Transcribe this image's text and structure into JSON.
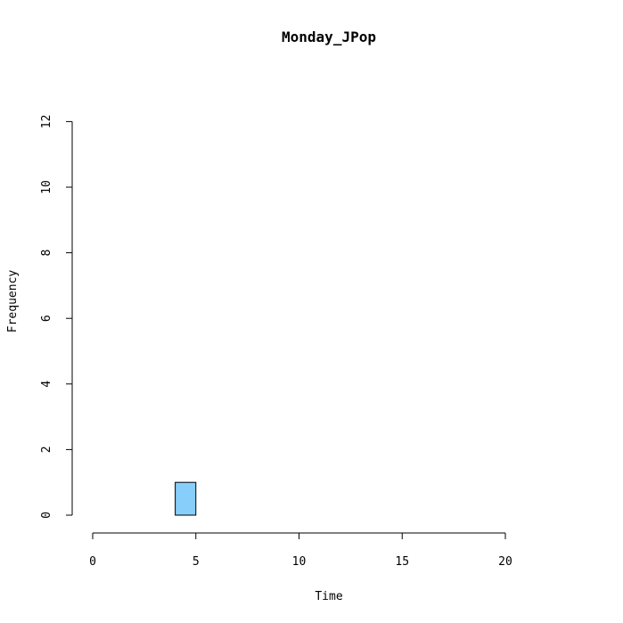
{
  "chart_data": {
    "type": "bar",
    "title": "Monday_JPop",
    "xlabel": "Time",
    "ylabel": "Frequency",
    "xlim": [
      0,
      24
    ],
    "ylim": [
      0,
      12
    ],
    "x_ticks": [
      "0",
      "5",
      "10",
      "15",
      "20"
    ],
    "y_ticks": [
      "0",
      "2",
      "4",
      "6",
      "8",
      "10",
      "12"
    ],
    "bin_width": 1,
    "bins": [
      {
        "start": 0,
        "end": 1,
        "count": 0
      },
      {
        "start": 1,
        "end": 2,
        "count": 0
      },
      {
        "start": 2,
        "end": 3,
        "count": 0
      },
      {
        "start": 3,
        "end": 4,
        "count": 0
      },
      {
        "start": 4,
        "end": 5,
        "count": 1
      },
      {
        "start": 5,
        "end": 6,
        "count": 0
      },
      {
        "start": 6,
        "end": 7,
        "count": 0
      },
      {
        "start": 7,
        "end": 8,
        "count": 0
      },
      {
        "start": 8,
        "end": 9,
        "count": 0
      },
      {
        "start": 9,
        "end": 10,
        "count": 0
      },
      {
        "start": 10,
        "end": 11,
        "count": 0
      },
      {
        "start": 11,
        "end": 12,
        "count": 0
      },
      {
        "start": 12,
        "end": 13,
        "count": 0
      },
      {
        "start": 13,
        "end": 14,
        "count": 0
      },
      {
        "start": 14,
        "end": 15,
        "count": 0
      },
      {
        "start": 15,
        "end": 16,
        "count": 0
      },
      {
        "start": 16,
        "end": 17,
        "count": 0
      },
      {
        "start": 17,
        "end": 18,
        "count": 0
      },
      {
        "start": 18,
        "end": 19,
        "count": 0
      },
      {
        "start": 19,
        "end": 20,
        "count": 0
      },
      {
        "start": 20,
        "end": 21,
        "count": 0
      },
      {
        "start": 21,
        "end": 22,
        "count": 0
      },
      {
        "start": 22,
        "end": 23,
        "count": 0
      },
      {
        "start": 23,
        "end": 24,
        "count": 0
      }
    ],
    "bar_fill": "#87CEFA",
    "bar_stroke": "#000000",
    "grid": false,
    "legend": "none"
  }
}
